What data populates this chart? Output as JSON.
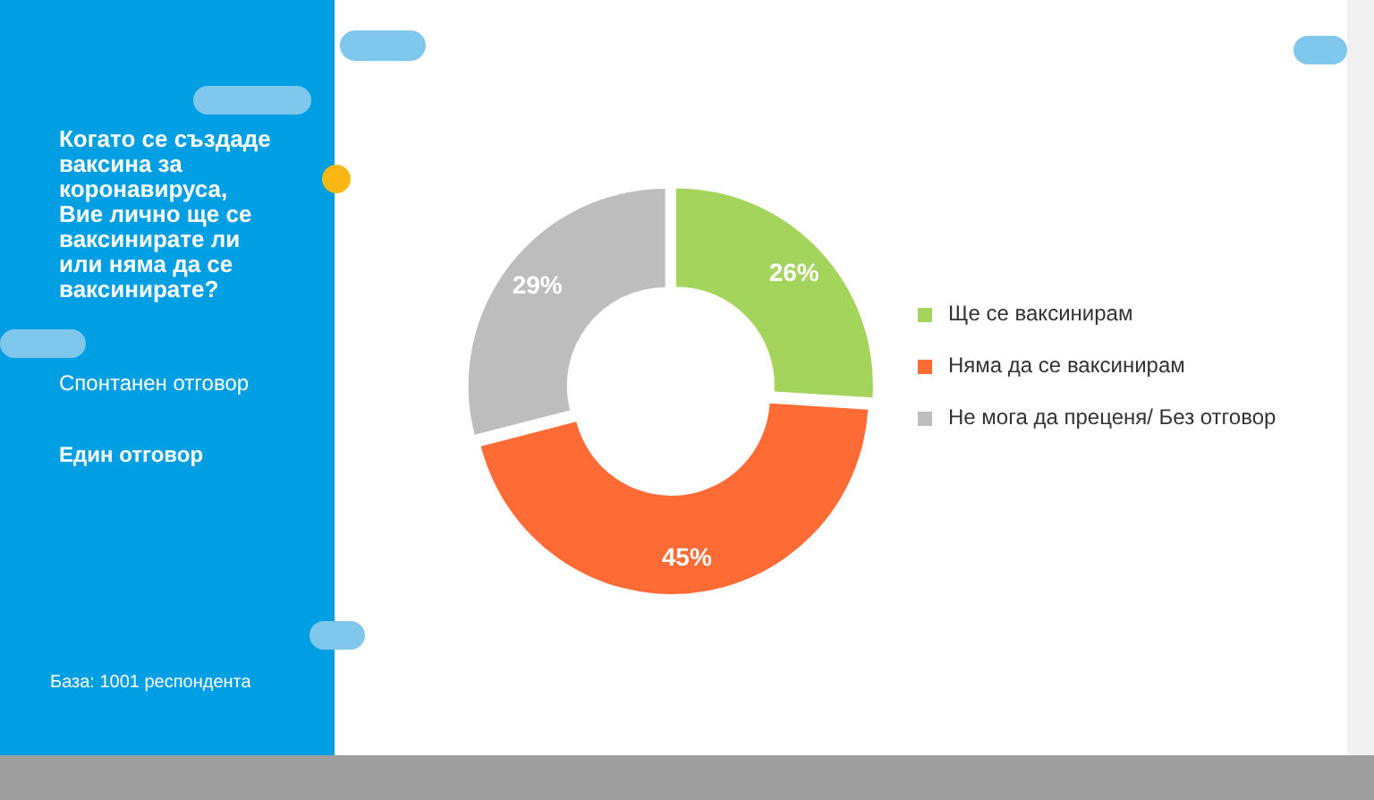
{
  "chart_data": {
    "type": "donut",
    "title": "Когато се създаде ваксина за коронавируса, Вие лично ще се ваксинирате ли или няма да се ваксинирате?",
    "subtitle": "Спонтанен отговор",
    "annotations": [
      "Един отговор",
      "База: 1001 респондента"
    ],
    "categories": [
      "Ще се ваксинирам",
      "Няма да се ваксинирам",
      "Не мога да преценя/ Без отговор"
    ],
    "values": [
      26,
      45,
      29
    ],
    "colors": [
      "#a5d45c",
      "#ff6b35",
      "#bdbdbd"
    ],
    "value_labels": [
      "26%",
      "45%",
      "29%"
    ],
    "legend": "right"
  }
}
